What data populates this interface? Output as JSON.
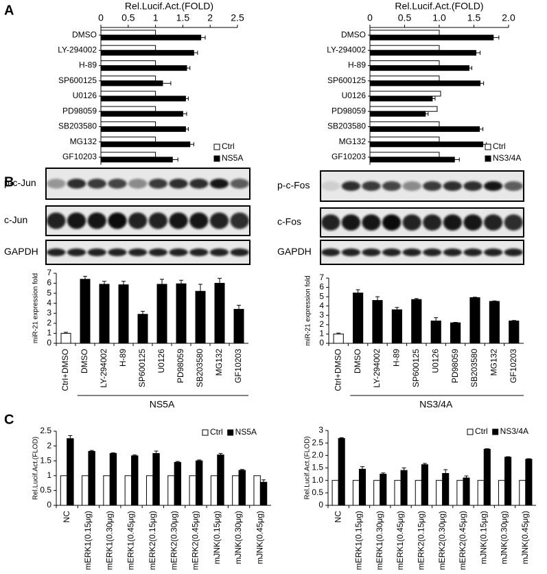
{
  "panels": [
    "A",
    "B",
    "C"
  ],
  "blots": [
    {
      "labels": [
        "p-c-Jun",
        "c-Jun",
        "GAPDH"
      ]
    },
    {
      "labels": [
        "p-c-Fos",
        "c-Fos",
        "GAPDH"
      ]
    }
  ],
  "chart_data": [
    {
      "type": "bar",
      "horizontal": true,
      "title": "Rel.Lucif.Act.(FOLD)",
      "categories": [
        "DMSO",
        "LY-294002",
        "H-89",
        "SP600125",
        "U0126",
        "PD98059",
        "SB203580",
        "MG132",
        "GF10203"
      ],
      "series": [
        {
          "name": "Ctrl",
          "color": "#ffffff",
          "values": [
            1,
            1,
            1,
            1,
            1,
            1,
            1,
            1,
            1
          ]
        },
        {
          "name": "NS5A",
          "color": "#000000",
          "values": [
            1.83,
            1.7,
            1.57,
            1.13,
            1.55,
            1.5,
            1.55,
            1.63,
            1.31
          ],
          "errors": [
            0.08,
            0.07,
            0.06,
            0.15,
            0.05,
            0.07,
            0.05,
            0.07,
            0.1
          ]
        }
      ],
      "xlim": [
        0,
        2.5
      ],
      "xticks": [
        0,
        0.5,
        1,
        1.5,
        2,
        2.5
      ],
      "legend": "lower right"
    },
    {
      "type": "bar",
      "horizontal": true,
      "title": "Rel.Lucif.Act.(FOLD)",
      "categories": [
        "DMSO",
        "LY-294002",
        "H-89",
        "SP600125",
        "U0126",
        "PD98059",
        "SB203580",
        "MG132",
        "GF10203"
      ],
      "series": [
        {
          "name": "Ctrl",
          "color": "#ffffff",
          "values": [
            1,
            1,
            1,
            1,
            1.02,
            0.97,
            1,
            1,
            1
          ]
        },
        {
          "name": "NS3/4A",
          "color": "#000000",
          "values": [
            1.78,
            1.53,
            1.43,
            1.59,
            0.9,
            0.8,
            1.58,
            1.63,
            1.22
          ],
          "errors": [
            0.08,
            0.06,
            0.04,
            0.05,
            0.04,
            0.04,
            0.05,
            0.05,
            0.07
          ]
        }
      ],
      "xlim": [
        0,
        2
      ],
      "xticks": [
        0,
        0.5,
        {
          "value": 1,
          "label": "1.0"
        },
        1.5,
        {
          "value": 2,
          "label": "2.0"
        }
      ],
      "legend": "lower right"
    },
    {
      "type": "bar",
      "ylabel": "miR-21 expression fold",
      "categories": [
        "Ctrl+DMSO",
        "DMSO",
        "LY-294002",
        "H-89",
        "SP600125",
        "U0126",
        "PD98059",
        "SB203580",
        "MG132",
        "GF10203"
      ],
      "values": [
        1,
        6.4,
        5.9,
        5.85,
        2.9,
        5.9,
        5.95,
        5.2,
        6,
        3.4
      ],
      "errors": [
        0.1,
        0.3,
        0.3,
        0.35,
        0.3,
        0.5,
        0.35,
        0.7,
        0.5,
        0.4
      ],
      "colors": [
        "#ffffff",
        "#000000",
        "#000000",
        "#000000",
        "#000000",
        "#000000",
        "#000000",
        "#000000",
        "#000000",
        "#000000"
      ],
      "ylim": [
        0,
        7
      ],
      "yticks": [
        0,
        1,
        2,
        3,
        4,
        5,
        6,
        7
      ],
      "group_label": "NS5A"
    },
    {
      "type": "bar",
      "ylabel": "miR-21 expression fold",
      "categories": [
        "Ctrl+DMSO",
        "DMSO",
        "LY-294002",
        "H-89",
        "SP600125",
        "U0126",
        "PD98059",
        "SB203580",
        "MG132",
        "GF10203"
      ],
      "values": [
        1,
        5.4,
        4.6,
        3.6,
        4.7,
        2.4,
        2.2,
        4.9,
        4.5,
        2.4
      ],
      "errors": [
        0.1,
        0.35,
        0.4,
        0.25,
        0.1,
        0.35,
        0.05,
        0.05,
        0.05,
        0.05
      ],
      "colors": [
        "#ffffff",
        "#000000",
        "#000000",
        "#000000",
        "#000000",
        "#000000",
        "#000000",
        "#000000",
        "#000000",
        "#000000"
      ],
      "ylim": [
        0,
        7
      ],
      "yticks": [
        0,
        1,
        2,
        3,
        4,
        5,
        6,
        7
      ],
      "group_label": "NS3/4A"
    },
    {
      "type": "bar",
      "ylabel": "Rel.Lucif.Act.(FLOD)",
      "categories": [
        "NC",
        "mERK1(0.15μg)",
        "mERK1(0.30μg)",
        "mERK1(0.45μg)",
        "mERK2(0.15μg)",
        "mERK2(0.30μg)",
        "mERK2(0.45μg)",
        "mJNK(0.15μg)",
        "mJNK(0.30μg)",
        "mJNK(0.45μg)"
      ],
      "series": [
        {
          "name": "Ctrl",
          "color": "#ffffff",
          "values": [
            1,
            1,
            1,
            1,
            1,
            1,
            1,
            1,
            1,
            1
          ]
        },
        {
          "name": "NS5A",
          "color": "#000000",
          "values": [
            2.25,
            1.82,
            1.75,
            1.67,
            1.75,
            1.45,
            1.5,
            1.7,
            1.18,
            0.78
          ],
          "errors": [
            0.1,
            0.03,
            0.02,
            0.03,
            0.08,
            0.03,
            0.03,
            0.05,
            0.03,
            0.08
          ]
        }
      ],
      "ylim": [
        0,
        2.5
      ],
      "yticks": [
        0,
        0.5,
        1,
        1.5,
        2,
        2.5
      ],
      "legend": "upper right"
    },
    {
      "type": "bar",
      "ylabel": "Rel.Lucif.Act.(FLOD)",
      "categories": [
        "NC",
        "mERK1(0.15μg)",
        "mERK1(0.30μg)",
        "mERK1(0.45μg)",
        "mERK2(0.15μg)",
        "mERK2(0.30μg)",
        "mERK2(0.45μg)",
        "mJNK(0.15μg)",
        "mJNK(0.30μg)",
        "mJNK(0.45μg)"
      ],
      "series": [
        {
          "name": "Ctrl",
          "color": "#ffffff",
          "values": [
            1,
            1,
            1,
            1,
            1,
            1,
            1,
            1,
            1,
            1
          ]
        },
        {
          "name": "NS3/4A",
          "color": "#000000",
          "values": [
            2.68,
            1.45,
            1.25,
            1.4,
            1.63,
            1.28,
            1.1,
            2.25,
            1.93,
            1.85
          ],
          "errors": [
            0.03,
            0.1,
            0.05,
            0.1,
            0.05,
            0.15,
            0.08,
            0.02,
            0.02,
            0.02
          ]
        }
      ],
      "ylim": [
        0,
        3
      ],
      "yticks": [
        0,
        0.5,
        {
          "value": 1,
          "label": "1.0"
        },
        1.5,
        {
          "value": 2,
          "label": "2.0"
        },
        2.5,
        3
      ],
      "legend": "upper right"
    }
  ]
}
